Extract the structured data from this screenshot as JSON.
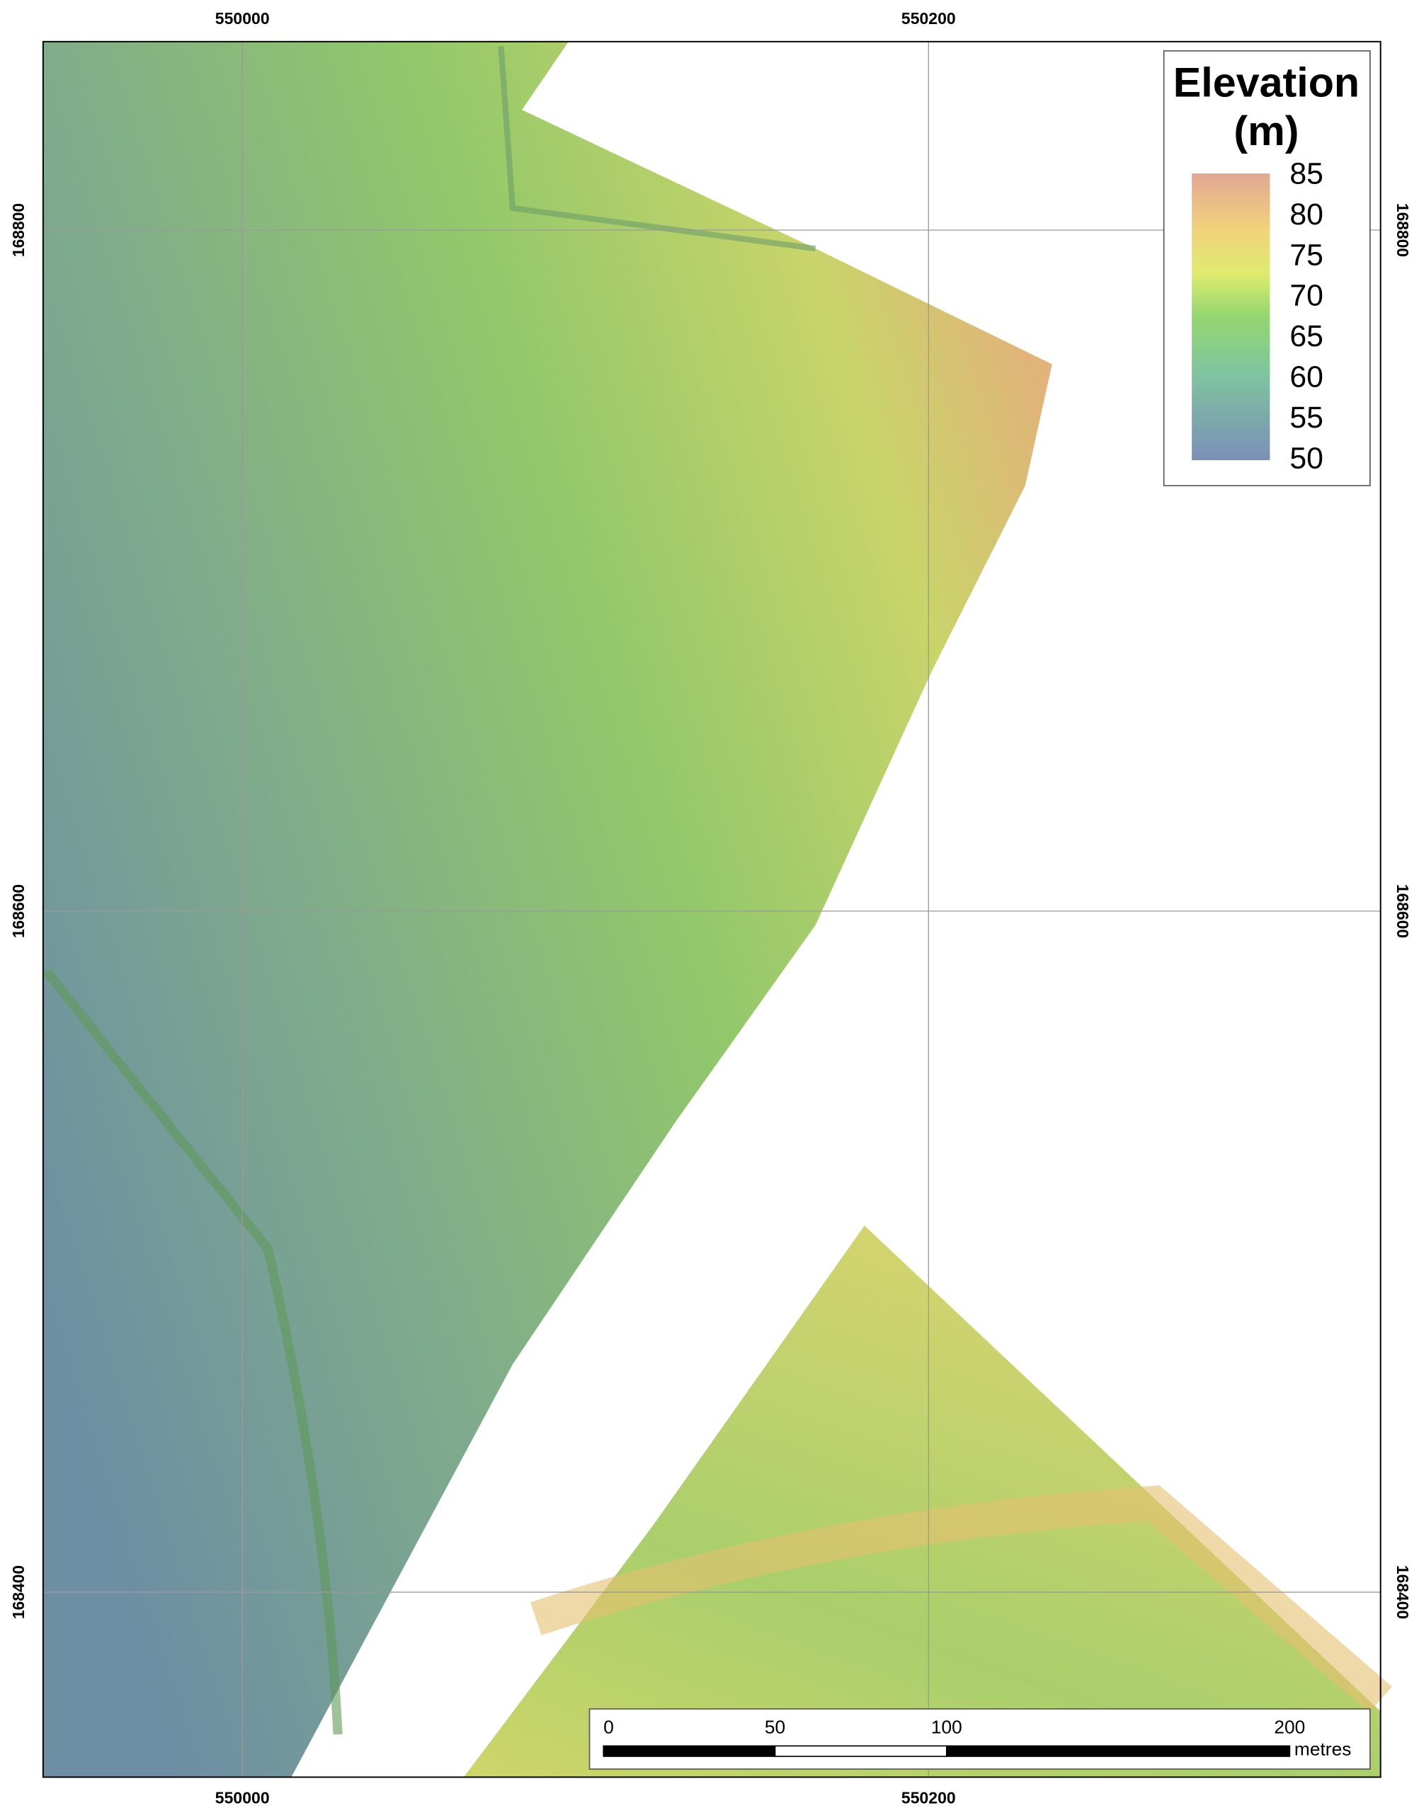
{
  "map": {
    "x_grid": [
      550000,
      550200
    ],
    "y_grid": [
      168800,
      168600,
      168400
    ],
    "legend": {
      "title": [
        "Elevation",
        "(m)"
      ],
      "ticks": [
        85,
        80,
        75,
        70,
        65,
        60,
        55,
        50
      ]
    },
    "scale_bar": {
      "ticks": [
        0,
        50,
        100,
        200
      ],
      "unit": "metres"
    }
  }
}
